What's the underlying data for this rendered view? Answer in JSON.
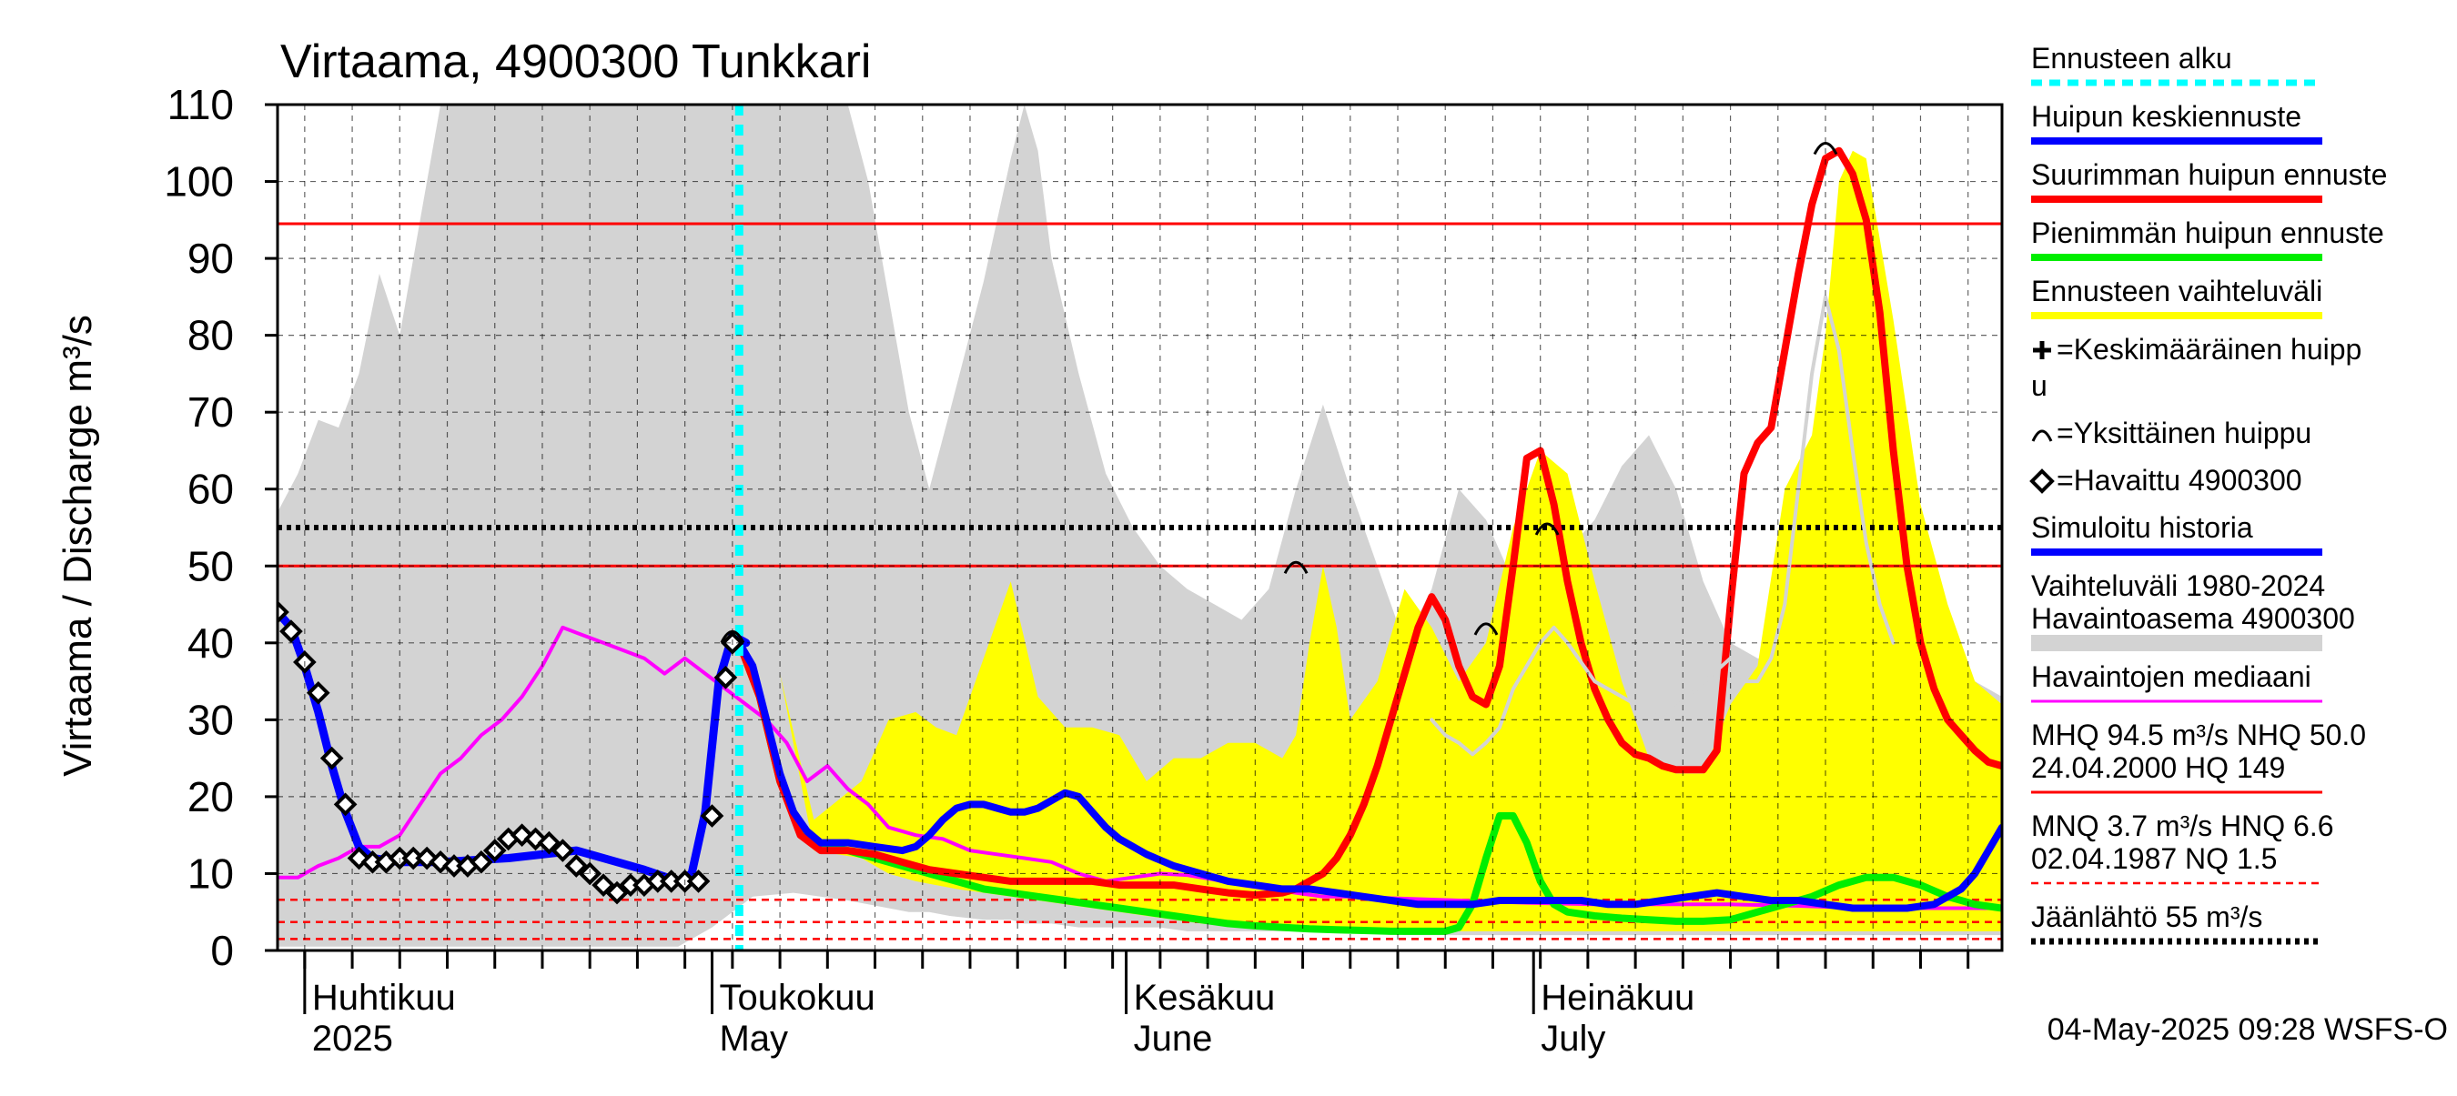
{
  "chart_data": {
    "type": "line",
    "title": "Virtaama, 4900300 Tunkkari",
    "ylabel": "Virtaama / Discharge   m³/s",
    "ylim": [
      0,
      110
    ],
    "xlim": [
      -4,
      250
    ],
    "yticks": [
      0,
      10,
      20,
      30,
      40,
      50,
      60,
      70,
      80,
      90,
      100,
      110
    ],
    "month_labels": [
      {
        "fi": "Huhtikuu",
        "en": "2025",
        "day": 0
      },
      {
        "fi": "Toukokuu",
        "en": "May",
        "day": 60
      },
      {
        "fi": "Kesäkuu",
        "en": "June",
        "day": 121
      },
      {
        "fi": "Heinäkuu",
        "en": "July",
        "day": 181
      }
    ],
    "forecast_start_day": 64,
    "reference_lines": {
      "MHQ": 94.5,
      "NHQ": 50.0,
      "ice_breakup_flow": 55,
      "dashed_red_levels": [
        6.6,
        3.7,
        1.5
      ]
    },
    "history_range": {
      "name": "Vaihteluväli 1980-2024 Havaintoasema 4900300",
      "color": "#d3d3d3",
      "x": [
        -4,
        -1,
        2,
        5,
        8,
        11,
        14,
        17,
        20,
        23,
        26,
        29,
        35,
        45,
        55,
        60,
        66,
        72,
        80,
        83,
        86,
        89,
        92,
        95,
        100,
        104,
        106,
        108,
        110,
        114,
        118,
        122,
        126,
        130,
        134,
        138,
        142,
        146,
        150,
        154,
        158,
        162,
        166,
        170,
        174,
        178,
        182,
        186,
        190,
        194,
        198,
        202,
        206,
        210,
        214,
        218,
        222,
        226,
        230,
        234,
        238,
        242,
        246,
        250
      ],
      "upper": [
        57,
        62,
        69,
        68,
        75,
        88,
        80,
        95,
        110,
        110,
        110,
        110,
        110,
        110,
        110,
        110,
        110,
        110,
        110,
        100,
        85,
        70,
        60,
        70,
        87,
        103,
        110,
        104,
        90,
        75,
        62,
        55,
        50,
        47,
        45,
        43,
        47,
        60,
        71,
        60,
        50,
        40,
        47,
        60,
        56,
        48,
        47,
        52,
        56,
        63,
        67,
        60,
        48,
        40,
        38,
        37,
        40,
        45,
        52,
        48,
        43,
        37,
        35,
        33
      ],
      "lower": [
        0.5,
        0.5,
        0.5,
        0.5,
        0.5,
        0.5,
        0.5,
        0.5,
        0.5,
        0.5,
        0.5,
        0.5,
        0.5,
        0.5,
        0.5,
        3,
        7,
        7.5,
        6.5,
        6,
        5.5,
        5,
        5,
        4.5,
        4,
        4,
        3.5,
        3.5,
        3.5,
        3,
        3,
        3,
        3,
        2.5,
        2.5,
        2.5,
        2.5,
        2.5,
        2.5,
        2.5,
        2.5,
        2,
        2,
        2,
        2,
        2,
        2,
        2,
        2,
        2,
        2,
        2,
        2,
        2,
        2,
        2,
        2,
        2,
        2,
        2,
        2,
        2,
        2,
        2
      ]
    },
    "forecast_range": {
      "name": "Ennusteen vaihteluväli",
      "color": "#ffff00",
      "x": [
        64,
        70,
        75,
        82,
        86,
        90,
        93,
        96,
        100,
        104,
        108,
        112,
        116,
        120,
        124,
        128,
        132,
        136,
        140,
        144,
        146,
        148,
        150,
        152,
        154,
        158,
        162,
        166,
        170,
        174,
        178,
        182,
        186,
        190,
        194,
        198,
        202,
        206,
        210,
        214,
        218,
        222,
        224,
        226,
        228,
        230,
        234,
        238,
        242,
        246,
        250
      ],
      "upper": [
        38,
        36,
        17,
        22,
        30,
        31,
        29,
        28,
        38,
        48,
        33,
        29,
        29,
        28,
        22,
        25,
        25,
        27,
        27,
        25,
        28,
        40,
        50,
        42,
        30,
        35,
        47,
        42,
        35,
        40,
        55,
        65,
        62,
        48,
        35,
        25,
        23,
        23,
        32,
        37,
        60,
        67,
        80,
        100,
        104,
        103,
        82,
        58,
        45,
        35,
        32
      ],
      "lower": [
        38,
        36,
        13,
        12,
        10,
        9,
        8.5,
        8,
        7.5,
        7,
        6.5,
        6,
        5.5,
        5,
        4.5,
        4,
        3.5,
        3.2,
        3,
        2.8,
        2.7,
        2.6,
        2.6,
        2.5,
        2.5,
        2.5,
        2.5,
        2.5,
        2.5,
        2.5,
        2.5,
        2.5,
        2.5,
        2.5,
        2.5,
        2.5,
        2.5,
        2.5,
        2.5,
        2.5,
        2.5,
        2.5,
        2.5,
        2.5,
        2.5,
        2.5,
        2.5,
        2.5,
        2.5,
        2.5,
        2.5
      ]
    },
    "series": [
      {
        "name": "Havaintojen mediaani",
        "color": "#ff00ff",
        "width": 4,
        "x": [
          -4,
          -1,
          2,
          5,
          8,
          11,
          14,
          17,
          20,
          23,
          26,
          29,
          32,
          35,
          38,
          41,
          44,
          47,
          50,
          53,
          56,
          59,
          62,
          65,
          68,
          71,
          74,
          77,
          80,
          83,
          86,
          90,
          94,
          98,
          102,
          106,
          110,
          114,
          118,
          122,
          126,
          130,
          134,
          138,
          142,
          146,
          150,
          155,
          160,
          170,
          180,
          190,
          200,
          210,
          220,
          230,
          240,
          250
        ],
        "y": [
          9.5,
          9.5,
          11,
          12,
          13.5,
          13.5,
          15,
          19,
          23,
          25,
          28,
          30,
          33,
          37,
          42,
          41,
          40,
          39,
          38,
          36,
          38,
          36,
          34,
          32,
          30,
          27,
          22,
          24,
          21,
          19,
          16,
          15,
          14.5,
          13,
          12.5,
          12,
          11.5,
          10,
          9,
          9.5,
          10,
          9.8,
          9.2,
          8.5,
          8,
          7.5,
          7,
          7,
          6.8,
          6.5,
          6.2,
          6,
          6,
          6,
          5.8,
          5.5,
          5.5,
          5.5
        ]
      },
      {
        "name": "Simuloitu historia",
        "color": "#0000ff",
        "width": 9,
        "x": [
          -4,
          -2,
          0,
          2,
          4,
          6,
          8,
          10,
          14,
          20,
          30,
          40,
          50,
          55,
          57,
          59,
          61,
          63,
          65
        ],
        "y": [
          44,
          42,
          37,
          31,
          24,
          18,
          13.5,
          12,
          11.5,
          11.5,
          12,
          13,
          10.5,
          9,
          10,
          18,
          35,
          41,
          40
        ]
      },
      {
        "name": "Pienimmän huipun ennuste",
        "color": "#00ee00",
        "width": 8,
        "x": [
          64,
          67,
          70,
          73,
          76,
          80,
          84,
          88,
          92,
          96,
          100,
          104,
          108,
          112,
          116,
          120,
          124,
          128,
          132,
          136,
          140,
          144,
          148,
          152,
          156,
          160,
          164,
          168,
          170,
          172,
          174,
          176,
          178,
          180,
          182,
          184,
          186,
          190,
          194,
          198,
          202,
          206,
          210,
          214,
          218,
          222,
          226,
          230,
          234,
          238,
          242,
          246,
          250
        ],
        "y": [
          40,
          33,
          22,
          16,
          13.5,
          13,
          12,
          11,
          10,
          9,
          8,
          7.5,
          7,
          6.5,
          6,
          5.5,
          5,
          4.5,
          4,
          3.5,
          3.2,
          3,
          2.8,
          2.7,
          2.6,
          2.5,
          2.5,
          2.5,
          3,
          6,
          12,
          17.5,
          17.5,
          14,
          9,
          6,
          5,
          4.5,
          4.2,
          4,
          3.8,
          3.8,
          4,
          5,
          6,
          7,
          8.5,
          9.5,
          9.5,
          8.5,
          7,
          6,
          5.5
        ]
      },
      {
        "name": "Suurimman huipun ennuste",
        "color": "#ff0000",
        "width": 8,
        "x": [
          64,
          67,
          70,
          73,
          76,
          80,
          84,
          88,
          92,
          96,
          100,
          104,
          108,
          112,
          116,
          120,
          124,
          128,
          132,
          136,
          140,
          144,
          146,
          148,
          150,
          152,
          154,
          156,
          158,
          160,
          162,
          164,
          166,
          168,
          170,
          172,
          174,
          176,
          178,
          180,
          182,
          184,
          186,
          188,
          190,
          192,
          194,
          196,
          198,
          200,
          202,
          204,
          206,
          208,
          210,
          212,
          214,
          216,
          218,
          220,
          222,
          224,
          226,
          228,
          230,
          232,
          234,
          236,
          238,
          240,
          242,
          244,
          246,
          248,
          250
        ],
        "y": [
          40,
          33,
          22,
          15,
          13,
          13,
          12.5,
          11.5,
          10.5,
          10,
          9.5,
          9,
          9,
          9,
          9,
          8.5,
          8.5,
          8.5,
          8,
          7.5,
          7.2,
          7.5,
          8,
          9,
          10,
          12,
          15,
          19,
          24,
          30,
          36,
          42,
          46,
          43,
          37,
          33,
          32,
          37,
          50,
          64,
          65,
          58,
          48,
          40,
          34,
          30,
          27,
          25.5,
          25,
          24,
          23.5,
          23.5,
          23.5,
          26,
          45,
          62,
          66,
          68,
          78,
          88,
          97,
          103,
          104,
          101,
          95,
          83,
          65,
          50,
          40,
          34,
          30,
          28,
          26,
          24.5,
          24
        ]
      },
      {
        "name": "Huipun keskiennuste",
        "color": "#0000ff",
        "width": 8,
        "x": [
          64,
          66,
          68,
          70,
          72,
          74,
          76,
          78,
          80,
          84,
          88,
          90,
          92,
          94,
          96,
          98,
          100,
          102,
          104,
          106,
          108,
          110,
          112,
          114,
          116,
          118,
          120,
          124,
          128,
          132,
          136,
          140,
          144,
          148,
          152,
          156,
          160,
          164,
          168,
          172,
          176,
          180,
          184,
          188,
          192,
          196,
          200,
          204,
          208,
          212,
          216,
          220,
          224,
          228,
          232,
          236,
          240,
          244,
          246,
          248,
          250
        ],
        "y": [
          40,
          37,
          30,
          23,
          18,
          15.5,
          14,
          14,
          14,
          13.5,
          13,
          13.5,
          15,
          17,
          18.5,
          19,
          19,
          18.5,
          18,
          18,
          18.5,
          19.5,
          20.5,
          20,
          18,
          16,
          14.5,
          12.5,
          11,
          10,
          9,
          8.5,
          8,
          8,
          7.5,
          7,
          6.5,
          6,
          6,
          6,
          6.5,
          6.5,
          6.5,
          6.5,
          6,
          6,
          6.5,
          7,
          7.5,
          7,
          6.5,
          6.5,
          6,
          5.5,
          5.5,
          5.5,
          6,
          8,
          10,
          13,
          16
        ]
      },
      {
        "name": "Suurimman huipun ennuste (hajonta)",
        "color": "#d3d3d3",
        "width": 4,
        "x": [
          166,
          168,
          170,
          172,
          174,
          176,
          178,
          180,
          182,
          184,
          186,
          190,
          200,
          210,
          212,
          214,
          216,
          218,
          220,
          222,
          224,
          226,
          228,
          230,
          232,
          234
        ],
        "y": [
          30,
          28,
          27,
          25.5,
          27,
          29,
          34,
          37,
          40,
          42,
          40,
          35,
          30,
          38,
          35,
          35,
          38,
          45,
          60,
          75,
          85,
          78,
          65,
          53,
          45,
          40
        ]
      }
    ],
    "observations": {
      "name": "Havaittu 4900300",
      "x": [
        -4,
        -2,
        0,
        2,
        4,
        6,
        8,
        10,
        12,
        14,
        16,
        18,
        20,
        22,
        24,
        26,
        28,
        30,
        32,
        34,
        36,
        38,
        40,
        42,
        44,
        46,
        48,
        50,
        52,
        54,
        56,
        58,
        60,
        62,
        63
      ],
      "y": [
        44,
        41.5,
        37.5,
        33.5,
        25,
        19,
        12,
        11.5,
        11.5,
        12,
        12,
        12,
        11.5,
        11,
        11,
        11.5,
        13,
        14.5,
        15,
        14.5,
        14,
        13,
        11,
        10,
        8.5,
        7.5,
        8.5,
        8.5,
        9,
        9,
        9,
        9,
        17.5,
        35.5,
        40
      ]
    },
    "peak_markers": {
      "name": "Yksittäinen huippu",
      "x": [
        146,
        174,
        183,
        224,
        63
      ],
      "y": [
        50,
        42,
        55,
        104.5,
        41
      ]
    },
    "legend": [
      {
        "label": "Ennusteen alku",
        "color": "#00ffff",
        "style": "dotted"
      },
      {
        "label": "Huipun keskiennuste",
        "color": "#0000ff",
        "style": "solid"
      },
      {
        "label": "Suurimman huipun ennuste",
        "color": "#ff0000",
        "style": "solid"
      },
      {
        "label": "Pienimmän huipun ennuste",
        "color": "#00ee00",
        "style": "solid"
      },
      {
        "label": "Ennusteen vaihteluväli",
        "color": "#ffff00",
        "style": "solid"
      },
      {
        "label": "=Keskimääräinen huipp",
        "label2": "u",
        "marker": "plus"
      },
      {
        "label": "=Yksittäinen huippu",
        "marker": "arc"
      },
      {
        "label": "=Havaittu 4900300",
        "marker": "diamond"
      },
      {
        "label": "Simuloitu historia",
        "color": "#0000ff",
        "style": "solid"
      },
      {
        "label": "Vaihteluväli 1980-2024",
        "label2": " Havaintoasema 4900300",
        "color": "#d3d3d3",
        "style": "solid"
      },
      {
        "label": "Havaintojen mediaani",
        "color": "#ff00ff",
        "style": "thin"
      },
      {
        "label": "MHQ 94.5 m³/s NHQ 50.0",
        "label2": "24.04.2000 HQ  149",
        "color": "#ff0000",
        "style": "thin"
      },
      {
        "label": "MNQ  3.7 m³/s HNQ  6.6",
        "label2": "02.04.1987 NQ  1.5",
        "color": "#ff0000",
        "style": "dashed"
      },
      {
        "label": "Jäänlähtö 55 m³/s",
        "color": "#000000",
        "style": "dotted"
      }
    ],
    "footer": "04-May-2025 09:28 WSFS-O"
  }
}
